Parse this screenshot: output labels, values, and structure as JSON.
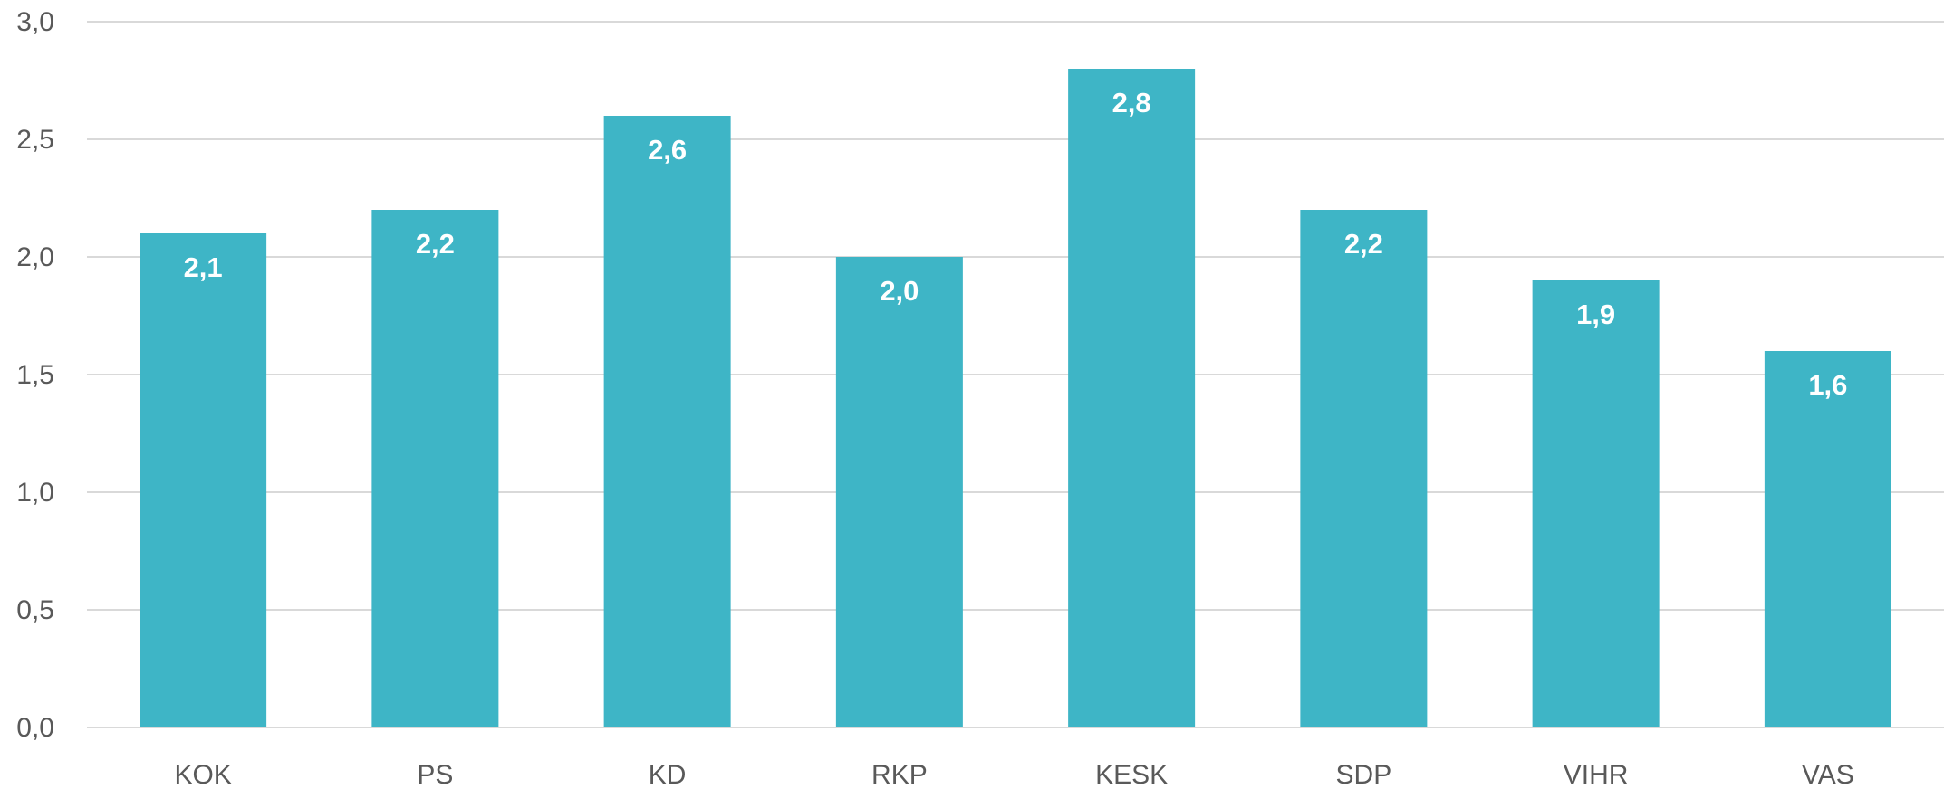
{
  "chart_data": {
    "type": "bar",
    "title": "",
    "xlabel": "",
    "ylabel": "",
    "categories": [
      "KOK",
      "PS",
      "KD",
      "RKP",
      "KESK",
      "SDP",
      "VIHR",
      "VAS"
    ],
    "values": [
      2.1,
      2.2,
      2.6,
      2.0,
      2.8,
      2.2,
      1.9,
      1.6
    ],
    "value_labels": [
      "2,1",
      "2,2",
      "2,6",
      "2,0",
      "2,8",
      "2,2",
      "1,9",
      "1,6"
    ],
    "ylim": [
      0,
      3.0
    ],
    "y_ticks": [
      0,
      0.5,
      1.0,
      1.5,
      2.0,
      2.5,
      3.0
    ],
    "y_tick_labels": [
      "0,0",
      "0,5",
      "1,0",
      "1,5",
      "2,0",
      "2,5",
      "3,0"
    ],
    "grid": true,
    "legend": "none",
    "bar_color": "#3eb5c6"
  }
}
